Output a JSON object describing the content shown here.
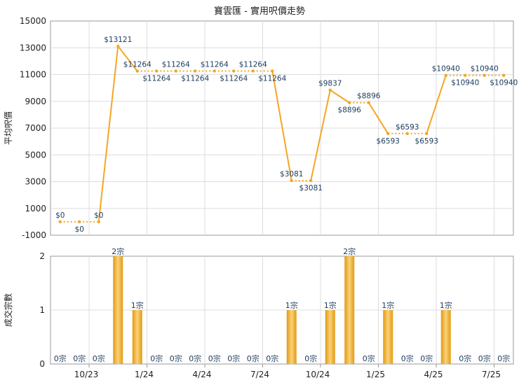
{
  "chart_data": [
    {
      "type": "line",
      "title": "寶雲匯 - 實用呎價走勢",
      "ylabel": "平均呎價",
      "ylim": [
        -1000,
        15000
      ],
      "y_ticks": [
        "15000",
        "13000",
        "11000",
        "9000",
        "7000",
        "5000",
        "3000",
        "1000",
        "-1000"
      ],
      "x_ticks": [
        "10/23",
        "1/24",
        "4/24",
        "7/24",
        "10/24",
        "1/25",
        "4/25",
        "7/25"
      ],
      "grid": true,
      "point_labels": [
        "$0",
        "$0",
        "$0",
        "$13121",
        "$11264",
        "$11264",
        "$11264",
        "$11264",
        "$11264",
        "$11264",
        "$11264",
        "$11264",
        "$3081",
        "$3081",
        "$9837",
        "$8896",
        "$8896",
        "$6593",
        "$6593",
        "$6593",
        "$10940",
        "$10940",
        "$10940",
        "$10940"
      ],
      "values": [
        0,
        0,
        0,
        13121,
        11264,
        11264,
        11264,
        11264,
        11264,
        11264,
        11264,
        11264,
        3081,
        3081,
        9837,
        8896,
        8896,
        6593,
        6593,
        6593,
        10940,
        10940,
        10940,
        10940
      ],
      "dashed_flat_segments": true,
      "colors": {
        "line": "#f5a623",
        "point": "#f5a623",
        "grid": "#dddddd",
        "axis": "#999999",
        "label": "#1a3a5c"
      }
    },
    {
      "type": "bar",
      "ylabel": "成交宗數",
      "ylim": [
        0,
        2
      ],
      "y_ticks": [
        "2",
        "1",
        "0"
      ],
      "x_ticks": [
        "10/23",
        "1/24",
        "4/24",
        "7/24",
        "10/24",
        "1/25",
        "4/25",
        "7/25"
      ],
      "grid": true,
      "bar_labels": [
        "0宗",
        "0宗",
        "0宗",
        "2宗",
        "1宗",
        "0宗",
        "0宗",
        "0宗",
        "0宗",
        "0宗",
        "0宗",
        "0宗",
        "1宗",
        "0宗",
        "1宗",
        "2宗",
        "0宗",
        "1宗",
        "0宗",
        "0宗",
        "1宗",
        "0宗",
        "0宗",
        "0宗"
      ],
      "values": [
        0,
        0,
        0,
        2,
        1,
        0,
        0,
        0,
        0,
        0,
        0,
        0,
        1,
        0,
        1,
        2,
        0,
        1,
        0,
        0,
        1,
        0,
        0,
        0
      ],
      "colors": {
        "bar_light": "#f7c96a",
        "bar_dark": "#e39a10",
        "grid": "#dddddd",
        "axis": "#999999",
        "label": "#1a3a5c"
      }
    }
  ]
}
